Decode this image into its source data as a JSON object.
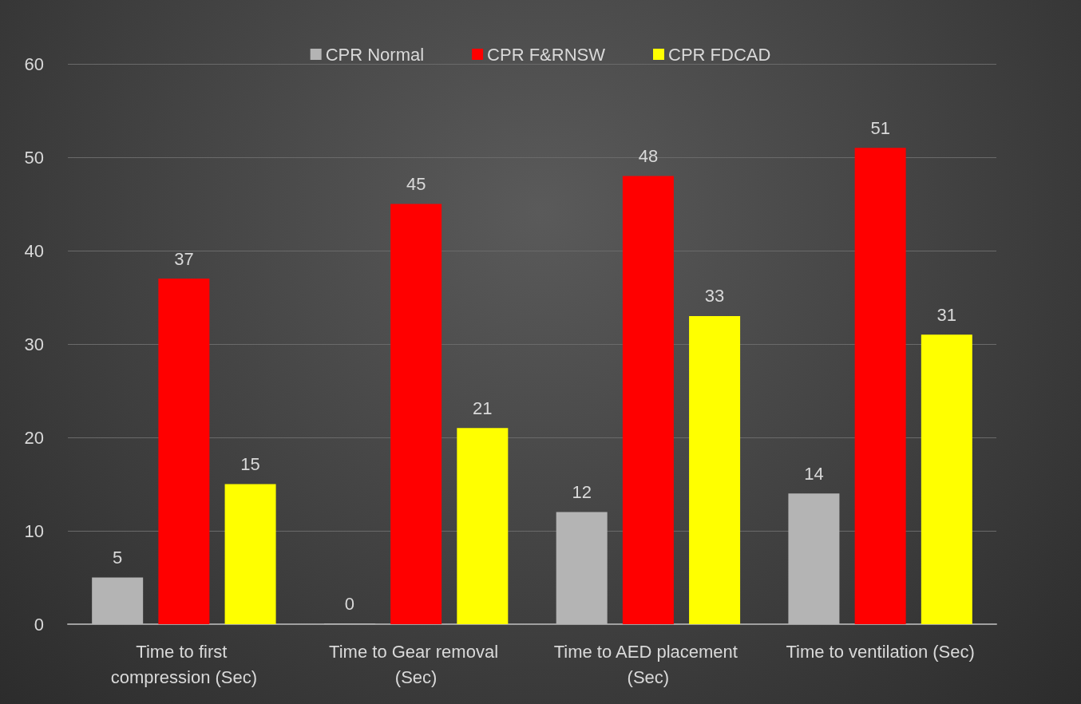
{
  "chart_data": {
    "type": "bar",
    "categories": [
      "Time to first compression (Sec)",
      "Time to Gear removal (Sec)",
      "Time to AED placement (Sec)",
      "Time to ventilation (Sec)"
    ],
    "series": [
      {
        "name": "CPR Normal",
        "color": "#b4b4b4",
        "values": [
          5,
          0,
          12,
          14
        ]
      },
      {
        "name": "CPR F&RNSW",
        "color": "#ff0000",
        "values": [
          37,
          45,
          48,
          51
        ]
      },
      {
        "name": "CPR FDCAD",
        "color": "#ffff00",
        "values": [
          15,
          21,
          33,
          31
        ]
      }
    ],
    "ylim": [
      0,
      60
    ],
    "yticks": [
      0,
      10,
      20,
      30,
      40,
      50,
      60
    ],
    "grid": "y",
    "legend": "top",
    "data_labels": true
  }
}
